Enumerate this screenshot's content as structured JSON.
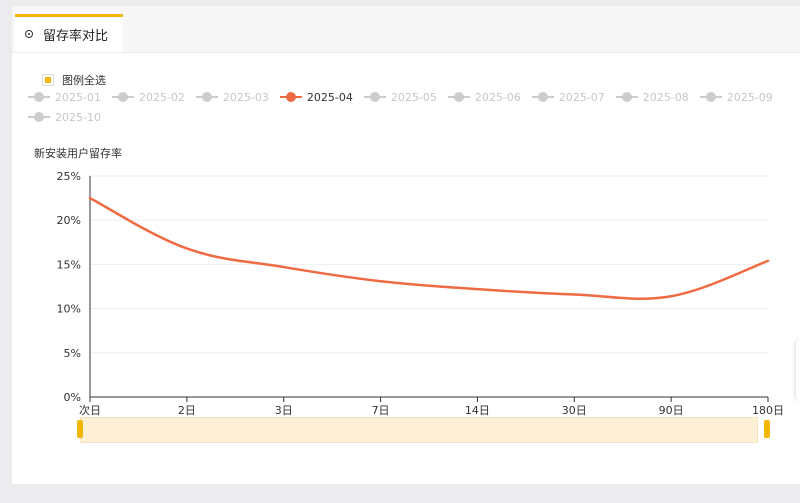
{
  "tab": {
    "label": "留存率对比",
    "icon": "target-icon"
  },
  "legend": {
    "select_all_label": "图例全选",
    "items": [
      {
        "label": "2025-01",
        "active": false
      },
      {
        "label": "2025-02",
        "active": false
      },
      {
        "label": "2025-03",
        "active": false
      },
      {
        "label": "2025-04",
        "active": true
      },
      {
        "label": "2025-05",
        "active": false
      },
      {
        "label": "2025-06",
        "active": false
      },
      {
        "label": "2025-07",
        "active": false
      },
      {
        "label": "2025-08",
        "active": false
      },
      {
        "label": "2025-09",
        "active": false
      },
      {
        "label": "2025-10",
        "active": false
      }
    ]
  },
  "colors": {
    "accent": "#f2b705",
    "series": "#ee6a43",
    "inactive": "#cccccc"
  },
  "chart_data": {
    "type": "line",
    "title": "",
    "ylabel": "新安装用户留存率",
    "xlabel": "",
    "categories": [
      "次日",
      "2日",
      "3日",
      "7日",
      "14日",
      "30日",
      "90日",
      "180日"
    ],
    "yticks": [
      "0%",
      "5%",
      "10%",
      "15%",
      "20%",
      "25%"
    ],
    "ylim": [
      0,
      25
    ],
    "series": [
      {
        "name": "2025-04",
        "values": [
          22.5,
          16.8,
          14.7,
          13.1,
          12.2,
          11.6,
          11.4,
          15.4
        ]
      }
    ],
    "grid": true,
    "legend_position": "top",
    "data_zoom": {
      "start": 0,
      "end": 100
    }
  }
}
